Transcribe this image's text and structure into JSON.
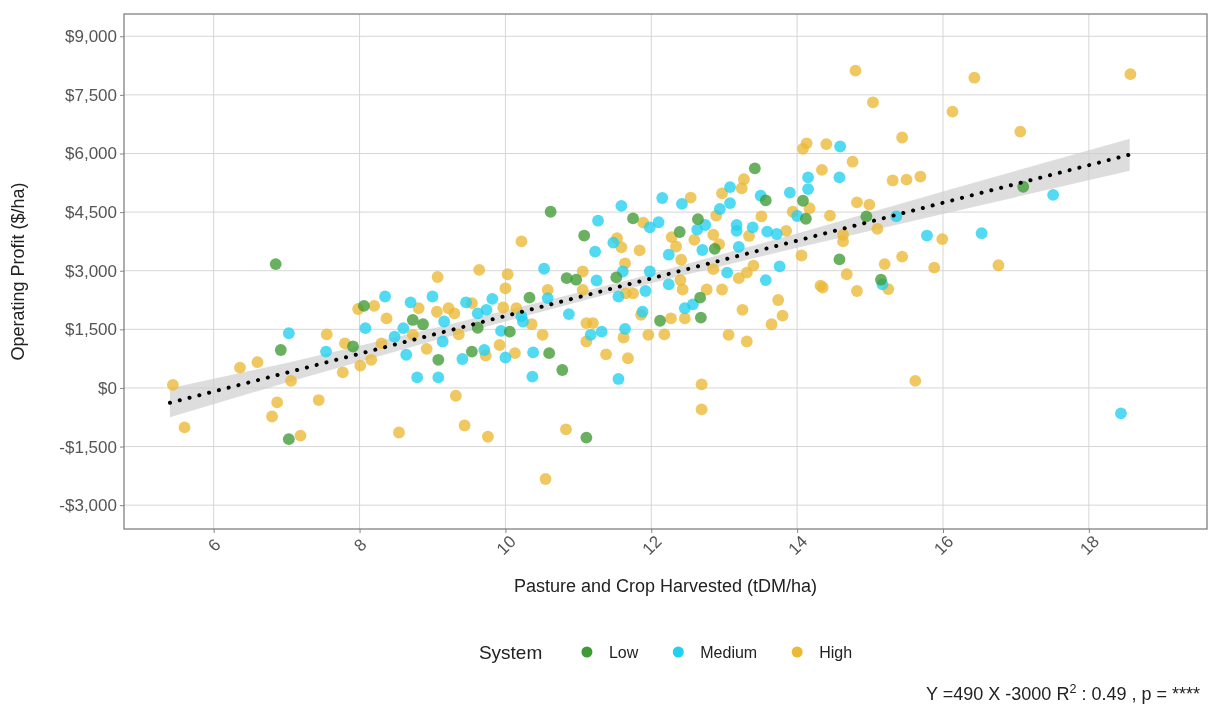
{
  "chart_data": {
    "type": "scatter",
    "xlabel": "Pasture and Crop Harvested (tDM/ha)",
    "ylabel": "Operating Profit ($/ha)",
    "legend_title": "System",
    "legend": "bottom",
    "marker": "circle",
    "grid": true,
    "xlim": [
      4.77,
      19.62
    ],
    "xticks": [
      6,
      8,
      10,
      12,
      14,
      16,
      18
    ],
    "ylim": [
      -3610,
      9570
    ],
    "yticks": [
      {
        "value": -3000,
        "label": "-$3,000"
      },
      {
        "value": -1500,
        "label": "-$1,500"
      },
      {
        "value": 0,
        "label": "$0"
      },
      {
        "value": 1500,
        "label": "$1,500"
      },
      {
        "value": 3000,
        "label": "$3,000"
      },
      {
        "value": 4500,
        "label": "$4,500"
      },
      {
        "value": 6000,
        "label": "$6,000"
      },
      {
        "value": 7500,
        "label": "$7,500"
      },
      {
        "value": 9000,
        "label": "$9,000"
      }
    ],
    "annotations": [
      "Y =490 X -3000 R$^{2}$ : 0.49 , p = ****"
    ],
    "series": [
      {
        "name": "Low",
        "color": "#3f9b35",
        "x": [
          6.85,
          13.42,
          13.57,
          14.08,
          14.12,
          10.62,
          11.75,
          12.64,
          12.39,
          12.87,
          14.58,
          11.08,
          10.84,
          10.97,
          11.52,
          17.1,
          14.95,
          15.15,
          6.92,
          7.03,
          7.91,
          8.06,
          8.73,
          8.87,
          9.08,
          9.62,
          9.54,
          11.11,
          10.78,
          10.6,
          10.06,
          10.33,
          12.12,
          12.68,
          12.67
        ],
        "values": [
          3170,
          5620,
          4800,
          4790,
          4330,
          4510,
          4340,
          4320,
          3990,
          3560,
          3290,
          3900,
          2810,
          2770,
          2830,
          5150,
          4390,
          2770,
          970,
          -1310,
          1060,
          2100,
          1740,
          1630,
          720,
          1540,
          930,
          -1270,
          460,
          890,
          1440,
          2310,
          1720,
          1800,
          2310
        ]
      },
      {
        "name": "Medium",
        "color": "#22d0ef",
        "x": [
          14.59,
          14.58,
          14.15,
          14.15,
          13.08,
          13.08,
          12.94,
          13.5,
          13.9,
          14.0,
          12.15,
          12.42,
          11.59,
          12.1,
          11.98,
          11.27,
          12.74,
          12.63,
          13.17,
          13.17,
          13.39,
          12.7,
          13.2,
          13.59,
          13.72,
          13.76,
          13.04,
          13.57,
          12.24,
          11.48,
          11.23,
          10.53,
          11.25,
          11.61,
          11.98,
          17.51,
          15.36,
          15.78,
          16.53,
          15.17,
          18.44,
          7.03,
          7.54,
          8.35,
          8.08,
          8.48,
          8.6,
          8.64,
          8.7,
          8.79,
          9.08,
          9.0,
          9.16,
          9.46,
          9.62,
          9.14,
          9.41,
          9.71,
          10.37,
          11.55,
          10.0,
          10.38,
          9.94,
          10.24,
          10.87,
          9.82,
          9.74,
          10.22,
          10.58,
          11.17,
          11.32,
          11.64,
          11.88,
          12.46,
          12.57,
          11.55,
          11.92,
          12.24
        ],
        "values": [
          6180,
          5390,
          5390,
          5090,
          5140,
          4730,
          4580,
          4920,
          5000,
          4400,
          4860,
          4710,
          4660,
          4240,
          4110,
          4280,
          4170,
          4050,
          4170,
          4020,
          4110,
          3530,
          3610,
          4000,
          3940,
          3110,
          2950,
          2760,
          3410,
          3720,
          3490,
          3050,
          2750,
          2980,
          2980,
          4940,
          4390,
          3900,
          3960,
          2650,
          -650,
          1400,
          930,
          2340,
          1530,
          1310,
          1530,
          850,
          2190,
          270,
          270,
          2340,
          1700,
          2190,
          1910,
          1190,
          740,
          970,
          290,
          230,
          780,
          910,
          1460,
          1700,
          1890,
          2280,
          2000,
          1830,
          2300,
          1360,
          1440,
          1510,
          1950,
          2040,
          2140,
          2340,
          2480,
          2650
        ]
      },
      {
        "name": "High",
        "color": "#ecb934",
        "x": [
          9.07,
          9.64,
          14.13,
          14.08,
          14.4,
          14.34,
          13.27,
          13.24,
          12.97,
          12.89,
          14.17,
          13.94,
          14.45,
          13.51,
          12.54,
          11.89,
          12.28,
          12.34,
          12.59,
          12.85,
          12.93,
          13.34,
          13.85,
          14.06,
          14.63,
          14.68,
          13.4,
          13.31,
          13.2,
          12.85,
          12.41,
          11.84,
          11.59,
          11.53,
          10.22,
          11.64,
          10.03,
          11.06,
          14.8,
          16.43,
          18.57,
          15.04,
          16.13,
          17.06,
          15.44,
          14.76,
          15.31,
          15.5,
          15.69,
          14.82,
          14.99,
          14.63,
          15.1,
          15.99,
          15.44,
          15.2,
          15.88,
          16.76,
          14.82,
          15.25,
          15.62,
          5.44,
          5.6,
          6.36,
          6.6,
          6.87,
          6.8,
          7.19,
          7.06,
          7.44,
          7.55,
          7.77,
          7.8,
          8.01,
          7.98,
          8.2,
          8.37,
          8.16,
          8.3,
          8.73,
          8.81,
          8.92,
          9.06,
          9.22,
          9.3,
          9.54,
          9.36,
          9.32,
          9.44,
          8.54,
          9.76,
          10.83,
          10.55,
          12.69,
          12.69,
          10.13,
          11.38,
          11.68,
          9.73,
          9.92,
          10.36,
          10.51,
          10.58,
          10.0,
          9.97,
          10.15,
          11.06,
          11.11,
          11.2,
          11.11,
          11.62,
          11.96,
          12.18,
          12.27,
          12.46,
          11.86,
          12.76,
          12.97,
          13.25,
          13.06,
          13.31,
          13.74,
          13.8,
          13.65,
          14.32,
          14.35,
          11.65,
          11.75,
          12.43,
          12.4
        ],
        "values": [
          2840,
          3020,
          6260,
          6120,
          6240,
          5580,
          5340,
          5110,
          4980,
          4410,
          4600,
          4510,
          4410,
          4390,
          4870,
          4230,
          3860,
          3620,
          3790,
          3920,
          3680,
          3890,
          4020,
          3390,
          3750,
          2910,
          3130,
          2950,
          2810,
          3040,
          3280,
          3520,
          3600,
          3830,
          3750,
          3190,
          2910,
          2980,
          8120,
          7940,
          8030,
          7310,
          7070,
          6560,
          6410,
          5790,
          5310,
          5330,
          5410,
          4750,
          4690,
          3920,
          4070,
          3810,
          3360,
          3170,
          3080,
          3140,
          2480,
          2530,
          180,
          80,
          -1010,
          520,
          660,
          -370,
          -730,
          -1220,
          180,
          -310,
          1370,
          400,
          1140,
          570,
          2020,
          2100,
          1780,
          720,
          1140,
          1360,
          2040,
          1000,
          1950,
          2040,
          1910,
          2170,
          1370,
          -200,
          -960,
          -1140,
          -1250,
          -1060,
          -2330,
          90,
          -550,
          890,
          860,
          760,
          830,
          1100,
          1630,
          1360,
          2510,
          2550,
          2060,
          2040,
          2510,
          1660,
          1660,
          1190,
          1290,
          1360,
          1370,
          1780,
          1780,
          1870,
          2520,
          2520,
          2000,
          1360,
          1190,
          2250,
          1850,
          1630,
          2620,
          2570,
          2420,
          2420,
          2520,
          2760
        ]
      },
      {
        "type": "line",
        "marker": "none",
        "color": "#000000",
        "line_style": "dotted",
        "x": [
          5.4,
          7,
          9,
          11.6,
          14,
          16,
          18.56
        ],
        "values": [
          -380,
          390,
          1360,
          2610,
          3770,
          4740,
          5970
        ],
        "lower": [
          -750,
          140,
          1200,
          2500,
          3590,
          4450,
          5560
        ],
        "upper": [
          -10,
          640,
          1520,
          2720,
          3950,
          5030,
          6380
        ]
      }
    ]
  }
}
